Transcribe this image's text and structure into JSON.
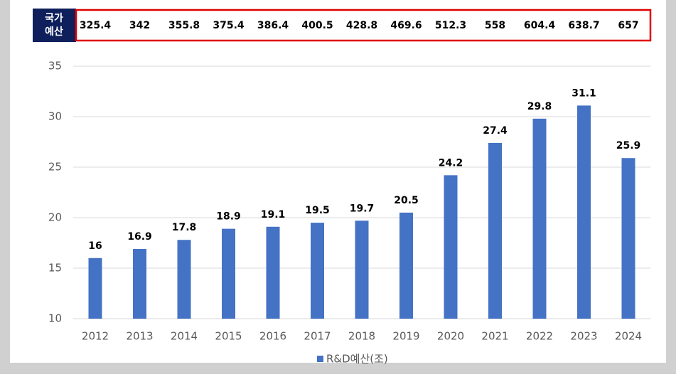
{
  "chart_data": {
    "type": "bar",
    "budget_row": {
      "label": [
        "국가",
        "예산"
      ],
      "values": [
        325.4,
        342,
        355.8,
        375.4,
        386.4,
        400.5,
        428.8,
        469.6,
        512.3,
        558,
        604.4,
        638.7,
        657
      ]
    },
    "categories": [
      "2012",
      "2013",
      "2014",
      "2015",
      "2016",
      "2017",
      "2018",
      "2019",
      "2020",
      "2021",
      "2022",
      "2023",
      "2024"
    ],
    "series": [
      {
        "name": "R&D예산(조)",
        "color": "#4472c4",
        "values": [
          16,
          16.9,
          17.8,
          18.9,
          19.1,
          19.5,
          19.7,
          20.5,
          24.2,
          27.4,
          29.8,
          31.1,
          25.9
        ]
      }
    ],
    "ylim": [
      10,
      35
    ],
    "yticks": [
      10,
      15,
      20,
      25,
      30,
      35
    ],
    "grid": true,
    "legend": "bottom"
  }
}
